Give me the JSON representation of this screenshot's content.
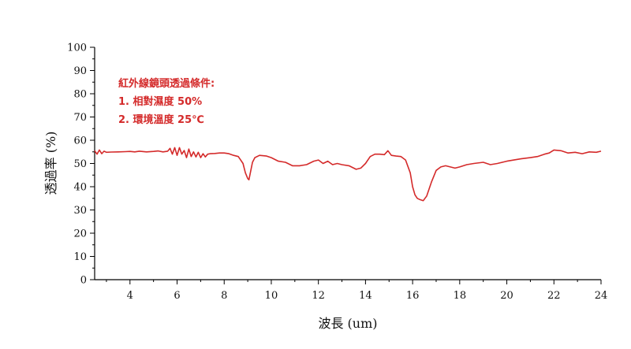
{
  "chart_data": {
    "type": "line",
    "xlabel": "波長 (um)",
    "ylabel": "透過率 (%)",
    "xlim": [
      2.5,
      24
    ],
    "ylim": [
      0,
      100
    ],
    "x_ticks": [
      "4",
      "6",
      "8",
      "10",
      "12",
      "14",
      "16",
      "18",
      "20",
      "22",
      "24"
    ],
    "y_ticks": [
      "0",
      "10",
      "20",
      "30",
      "40",
      "50",
      "60",
      "70",
      "80",
      "90",
      "100"
    ],
    "annotations": [
      "紅外線鏡頭透過條件:",
      "1. 相對濕度 50%",
      "2. 環境溫度 25℃"
    ],
    "grid": false,
    "legend": "none",
    "series": [
      {
        "color": "#d42a2a",
        "x": [
          2.5,
          2.6,
          2.7,
          2.8,
          2.9,
          3.0,
          3.2,
          3.5,
          3.8,
          4.0,
          4.2,
          4.4,
          4.7,
          5.0,
          5.2,
          5.4,
          5.6,
          5.7,
          5.8,
          5.9,
          6.0,
          6.1,
          6.2,
          6.3,
          6.4,
          6.5,
          6.6,
          6.7,
          6.8,
          6.9,
          7.0,
          7.1,
          7.2,
          7.3,
          7.4,
          7.6,
          7.8,
          8.0,
          8.2,
          8.4,
          8.6,
          8.8,
          8.9,
          9.0,
          9.05,
          9.1,
          9.2,
          9.3,
          9.5,
          9.8,
          10.0,
          10.3,
          10.6,
          10.9,
          11.2,
          11.5,
          11.8,
          12.0,
          12.2,
          12.4,
          12.6,
          12.8,
          13.0,
          13.3,
          13.6,
          13.8,
          14.0,
          14.2,
          14.4,
          14.6,
          14.8,
          14.95,
          15.1,
          15.3,
          15.5,
          15.7,
          15.9,
          16.0,
          16.1,
          16.2,
          16.3,
          16.45,
          16.6,
          16.8,
          17.0,
          17.2,
          17.4,
          17.6,
          17.8,
          18.0,
          18.3,
          18.6,
          19.0,
          19.3,
          19.6,
          20.0,
          20.3,
          20.6,
          21.0,
          21.3,
          21.6,
          21.8,
          22.0,
          22.3,
          22.6,
          22.9,
          23.2,
          23.5,
          23.8,
          24.0
        ],
        "y": [
          55.5,
          54.0,
          55.8,
          54.2,
          55.3,
          54.8,
          54.9,
          55.0,
          55.1,
          55.2,
          55.0,
          55.3,
          55.0,
          55.2,
          55.4,
          55.0,
          55.3,
          56.5,
          54.0,
          56.8,
          53.5,
          56.8,
          54.0,
          55.6,
          52.5,
          56.2,
          53.0,
          55.0,
          52.8,
          54.8,
          52.5,
          54.2,
          52.8,
          54.0,
          54.2,
          54.3,
          54.5,
          54.5,
          54.2,
          53.5,
          53.0,
          50.0,
          46.0,
          43.5,
          43.0,
          45.5,
          50.5,
          52.5,
          53.5,
          53.2,
          52.5,
          51.0,
          50.5,
          49.0,
          49.0,
          49.5,
          51.0,
          51.5,
          50.0,
          51.0,
          49.5,
          50.0,
          49.5,
          49.0,
          47.5,
          48.0,
          50.0,
          53.0,
          54.0,
          54.0,
          53.8,
          55.5,
          53.5,
          53.2,
          53.0,
          51.5,
          46.0,
          40.0,
          36.5,
          35.0,
          34.5,
          34.0,
          36.0,
          42.0,
          47.0,
          48.5,
          49.0,
          48.5,
          48.0,
          48.5,
          49.5,
          50.0,
          50.5,
          49.5,
          50.0,
          51.0,
          51.5,
          52.0,
          52.5,
          53.0,
          54.0,
          54.5,
          55.8,
          55.5,
          54.5,
          54.8,
          54.2,
          55.0,
          54.8,
          55.3
        ]
      }
    ]
  }
}
